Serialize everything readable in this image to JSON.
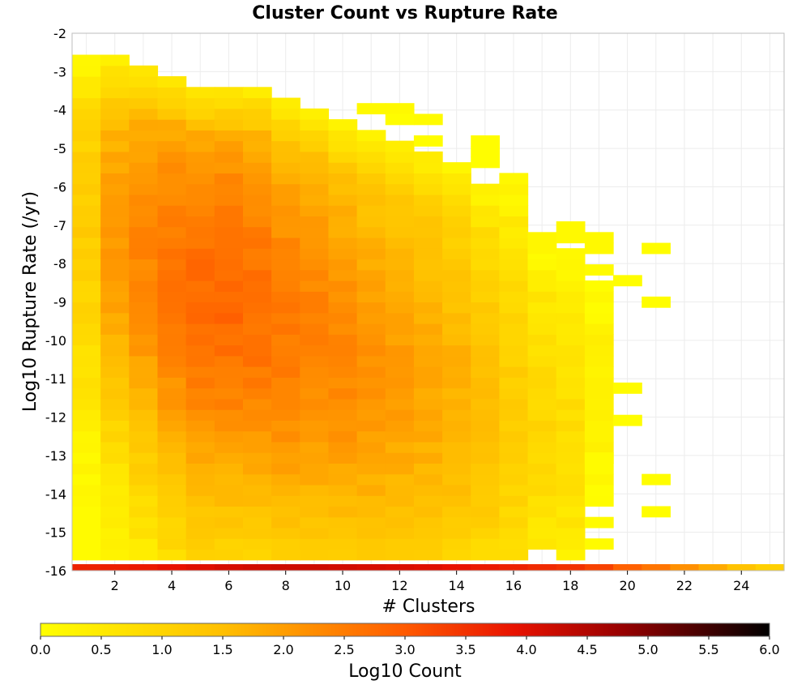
{
  "chart_data": {
    "type": "heatmap",
    "title": "Cluster Count vs Rupture Rate",
    "xlabel": "# Clusters",
    "ylabel": "Log10 Rupture Rate (/yr)",
    "xlim": [
      0.5,
      25.5
    ],
    "ylim": [
      -16,
      -2
    ],
    "x_ticks": [
      2,
      4,
      6,
      8,
      10,
      12,
      14,
      16,
      18,
      20,
      22,
      24
    ],
    "y_ticks": [
      -2,
      -3,
      -4,
      -5,
      -6,
      -7,
      -8,
      -9,
      -10,
      -11,
      -12,
      -13,
      -14,
      -15,
      -16
    ],
    "cell_width": 1,
    "cell_height": 0.28,
    "grid": true,
    "colorbar": {
      "label": "Log10 Count",
      "min": 0.0,
      "max": 6.0,
      "placement": "bottom",
      "ticks": [
        "0.0",
        "0.5",
        "1.0",
        "1.5",
        "2.0",
        "2.5",
        "3.0",
        "3.5",
        "4.0",
        "4.5",
        "5.0",
        "5.5",
        "6.0"
      ],
      "colormap": [
        [
          0.0,
          "#ffff00"
        ],
        [
          0.25,
          "#ffbf00"
        ],
        [
          0.5,
          "#ff5a00"
        ],
        [
          0.65,
          "#e81200"
        ],
        [
          0.8,
          "#960000"
        ],
        [
          1.0,
          "#000000"
        ]
      ]
    },
    "bottom_row": {
      "y": -16,
      "columns": [
        1,
        2,
        3,
        4,
        5,
        6,
        7,
        8,
        9,
        10,
        11,
        12,
        13,
        14,
        15,
        16,
        17,
        18,
        19,
        20,
        21,
        22,
        23,
        24,
        25
      ],
      "values": [
        3.7,
        3.75,
        3.8,
        3.9,
        4.0,
        4.1,
        4.15,
        4.2,
        4.2,
        4.15,
        4.1,
        4.05,
        4.0,
        3.9,
        3.8,
        3.7,
        3.6,
        3.5,
        3.3,
        2.9,
        2.6,
        2.2,
        1.8,
        1.4,
        1.1
      ]
    },
    "columns": [
      {
        "x": 1,
        "top": -2.7,
        "bottom": -15.72,
        "peak": 1.4,
        "peak_at": -7,
        "spread": 6.0
      },
      {
        "x": 2,
        "top": -2.7,
        "bottom": -15.72,
        "peak": 2.05,
        "peak_at": -7.5,
        "spread": 6.0
      },
      {
        "x": 3,
        "top": -2.98,
        "bottom": -15.72,
        "peak": 2.35,
        "peak_at": -8,
        "spread": 6.5
      },
      {
        "x": 4,
        "top": -3.26,
        "bottom": -15.72,
        "peak": 2.6,
        "peak_at": -8.5,
        "spread": 7.0
      },
      {
        "x": 5,
        "top": -3.54,
        "bottom": -15.72,
        "peak": 2.75,
        "peak_at": -9,
        "spread": 7.0
      },
      {
        "x": 6,
        "top": -3.54,
        "bottom": -15.72,
        "peak": 2.8,
        "peak_at": -9,
        "spread": 7.0
      },
      {
        "x": 7,
        "top": -3.54,
        "bottom": -15.72,
        "peak": 2.7,
        "peak_at": -9.3,
        "spread": 7.0
      },
      {
        "x": 8,
        "top": -3.82,
        "bottom": -15.72,
        "peak": 2.55,
        "peak_at": -9.8,
        "spread": 7.0
      },
      {
        "x": 9,
        "top": -4.1,
        "bottom": -15.72,
        "peak": 2.4,
        "peak_at": -10,
        "spread": 7.0
      },
      {
        "x": 10,
        "top": -4.38,
        "bottom": -15.72,
        "peak": 2.3,
        "peak_at": -10.5,
        "spread": 7.0
      },
      {
        "x": 11,
        "top": -4.66,
        "bottom": -15.72,
        "peak": 2.15,
        "peak_at": -10.8,
        "spread": 7.0
      },
      {
        "x": 12,
        "top": -4.94,
        "bottom": -15.72,
        "peak": 2.0,
        "peak_at": -11,
        "spread": 7.0
      },
      {
        "x": 13,
        "top": -5.22,
        "bottom": -15.72,
        "peak": 1.85,
        "peak_at": -11.2,
        "spread": 7.0
      },
      {
        "x": 14,
        "top": -5.5,
        "bottom": -15.72,
        "peak": 1.7,
        "peak_at": -11.5,
        "spread": 6.5
      },
      {
        "x": 15,
        "top": -6.06,
        "bottom": -15.72,
        "peak": 1.45,
        "peak_at": -11.8,
        "spread": 6.0
      },
      {
        "x": 16,
        "top": -5.78,
        "bottom": -15.72,
        "peak": 1.2,
        "peak_at": -12,
        "spread": 5.5
      },
      {
        "x": 17,
        "top": -7.74,
        "bottom": -15.44,
        "peak": 0.95,
        "peak_at": -12.2,
        "spread": 4.5
      },
      {
        "x": 18,
        "top": -7.74,
        "bottom": -15.72,
        "peak": 0.8,
        "peak_at": -12.5,
        "spread": 4.0
      },
      {
        "x": 19,
        "top": -8.58,
        "bottom": -14.32,
        "peak": 0.35,
        "peak_at": -11,
        "spread": 3.0
      }
    ],
    "extra_cells": [
      {
        "x": 11,
        "y": -4.1,
        "v": 0.15
      },
      {
        "x": 12,
        "y": -4.1,
        "v": 0.15
      },
      {
        "x": 12,
        "y": -4.38,
        "v": 0.05
      },
      {
        "x": 13,
        "y": -4.38,
        "v": 0.1
      },
      {
        "x": 13,
        "y": -4.94,
        "v": 0.05
      },
      {
        "x": 15,
        "y": -4.94,
        "v": 0.05
      },
      {
        "x": 15,
        "y": -5.22,
        "v": 0.05
      },
      {
        "x": 15,
        "y": -5.5,
        "v": 0.05
      },
      {
        "x": 17,
        "y": -7.46,
        "v": 0.2
      },
      {
        "x": 17,
        "y": -7.74,
        "v": 0.2
      },
      {
        "x": 18,
        "y": -7.18,
        "v": 0.15
      },
      {
        "x": 18,
        "y": -7.46,
        "v": 0.15
      },
      {
        "x": 19,
        "y": -7.46,
        "v": 0.15
      },
      {
        "x": 19,
        "y": -7.74,
        "v": 0.15
      },
      {
        "x": 19,
        "y": -8.3,
        "v": 0.1
      },
      {
        "x": 19,
        "y": -14.88,
        "v": 0.1
      },
      {
        "x": 19,
        "y": -15.44,
        "v": 0.1
      },
      {
        "x": 19,
        "y": -13.2,
        "v": 0.1
      },
      {
        "x": 20,
        "y": -8.58,
        "v": 0.05
      },
      {
        "x": 20,
        "y": -11.38,
        "v": 0.1
      },
      {
        "x": 20,
        "y": -12.22,
        "v": 0.05
      },
      {
        "x": 21,
        "y": -7.74,
        "v": 0.05
      },
      {
        "x": 21,
        "y": -9.14,
        "v": 0.05
      },
      {
        "x": 21,
        "y": -13.76,
        "v": 0.05
      },
      {
        "x": 21,
        "y": -14.6,
        "v": 0.05
      }
    ],
    "holes": [
      {
        "x": 17,
        "y": -7.46
      },
      {
        "x": 17,
        "y": -7.18
      },
      {
        "x": 19,
        "y": -8.02
      }
    ]
  }
}
